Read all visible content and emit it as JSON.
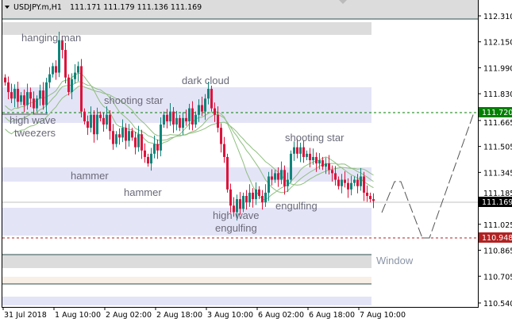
{
  "header": {
    "symbol": "USDJPY.m,H1",
    "ohlc": "111.171 111.179 111.136 111.169",
    "collapse_icon": "triangle-down-icon"
  },
  "price_axis": [
    "112.310",
    "112.150",
    "111.990",
    "111.830",
    "111.665",
    "111.505",
    "111.345",
    "111.185",
    "111.025",
    "110.865",
    "110.705",
    "110.540"
  ],
  "price_range": [
    110.54,
    112.31
  ],
  "time_axis": [
    "31 Jul 2018",
    "1 Aug 10:00",
    "2 Aug 02:00",
    "2 Aug 18:00",
    "3 Aug 10:00",
    "6 Aug 02:00",
    "6 Aug 18:00",
    "7 Aug 10:00"
  ],
  "markers": {
    "take_profit": {
      "value": "111.720",
      "color": "#008000"
    },
    "current": {
      "value": "111.169",
      "color": "#000000"
    },
    "stop_loss": {
      "value": "110.948",
      "color": "#b22222"
    }
  },
  "colors": {
    "bull": "#10857b",
    "bear": "#dc143c",
    "ma": "#8fbf7f",
    "zone": "#e4e4f7",
    "window": "#dcdcdc",
    "zone_beige": "#f8efe6"
  },
  "patterns": {
    "hanging_man": "hanging man",
    "high_wave": "high wave",
    "tweezers": "tweezers",
    "shooting_star_1": "shooting star",
    "dark_cloud": "dark cloud",
    "hammer_1": "hammer",
    "hammer_2": "hammer",
    "shooting_star_2": "shooting star",
    "engulfing": "engulfing",
    "high_wave_2": "high wave",
    "engulfing_2": "engulfing",
    "window": "Window"
  },
  "closes": [
    111.9,
    111.84,
    111.8,
    111.86,
    111.78,
    111.82,
    111.76,
    111.84,
    111.8,
    111.74,
    111.8,
    111.85,
    111.76,
    111.9,
    111.95,
    112.0,
    111.96,
    112.16,
    112.1,
    111.93,
    111.84,
    111.92,
    111.96,
    112.0,
    111.72,
    111.66,
    111.62,
    111.7,
    111.58,
    111.7,
    111.68,
    111.64,
    111.7,
    111.6,
    111.52,
    111.58,
    111.56,
    111.62,
    111.54,
    111.6,
    111.56,
    111.5,
    111.58,
    111.48,
    111.44,
    111.4,
    111.46,
    111.52,
    111.48,
    111.64,
    111.7,
    111.66,
    111.72,
    111.64,
    111.68,
    111.62,
    111.68,
    111.66,
    111.74,
    111.64,
    111.7,
    111.76,
    111.72,
    111.8,
    111.86,
    111.74,
    111.7,
    111.62,
    111.52,
    111.44,
    111.24,
    111.14,
    111.1,
    111.18,
    111.12,
    111.2,
    111.16,
    111.22,
    111.18,
    111.24,
    111.2,
    111.16,
    111.22,
    111.32,
    111.3,
    111.34,
    111.3,
    111.36,
    111.26,
    111.3,
    111.46,
    111.5,
    111.46,
    111.5,
    111.44,
    111.46,
    111.42,
    111.44,
    111.4,
    111.42,
    111.38,
    111.4,
    111.36,
    111.34,
    111.3,
    111.26,
    111.3,
    111.28,
    111.24,
    111.28,
    111.3,
    111.26,
    111.32,
    111.22,
    111.2,
    111.18,
    111.169
  ]
}
